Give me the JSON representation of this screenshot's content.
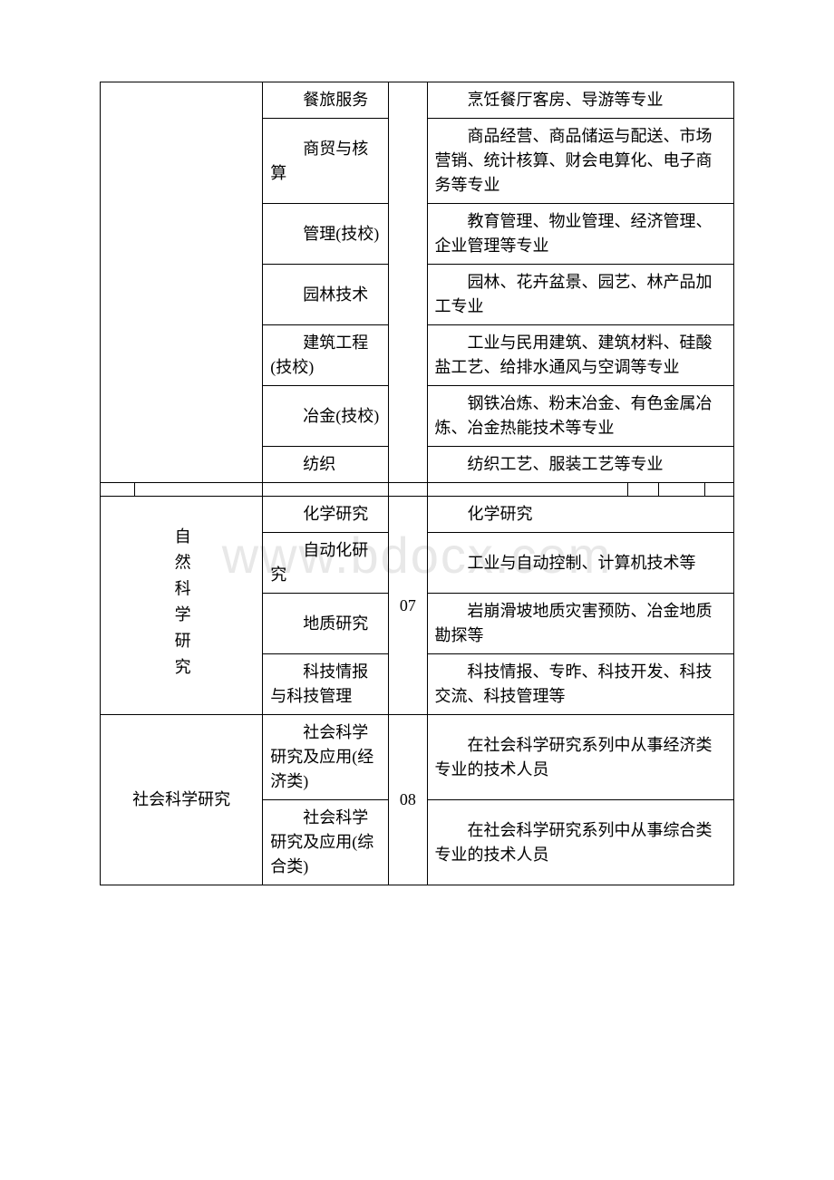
{
  "watermark": "www.bdocx.com",
  "section1": {
    "rows": [
      {
        "col2": "餐旅服务",
        "col4": "烹饪餐厅客房、导游等专业"
      },
      {
        "col2": "商贸与核算",
        "col4": "商品经营、商品储运与配送、市场营销、统计核算、财会电算化、电子商务等专业"
      },
      {
        "col2": "管理(技校)",
        "col4": "教育管理、物业管理、经济管理、企业管理等专业"
      },
      {
        "col2": "园林技术",
        "col4": "园林、花卉盆景、园艺、林产品加工专业"
      },
      {
        "col2": "建筑工程(技校)",
        "col4": "工业与民用建筑、建筑材料、硅酸盐工艺、给排水通风与空调等专业"
      },
      {
        "col2": "冶金(技校)",
        "col4": "钢铁冶炼、粉末冶金、有色金属冶炼、冶金热能技术等专业"
      },
      {
        "col2": "纺织",
        "col4": "纺织工艺、服装工艺等专业"
      }
    ]
  },
  "section2": {
    "header": "自然科学研究",
    "code": "07",
    "rows": [
      {
        "col2": "化学研究",
        "col4": "化学研究"
      },
      {
        "col2": "自动化研究",
        "col4": "工业与自动控制、计算机技术等"
      },
      {
        "col2": "地质研究",
        "col4": "岩崩滑坡地质灾害预防、冶金地质勘探等"
      },
      {
        "col2": "科技情报与科技管理",
        "col4": "科技情报、专昨、科技开发、科技交流、科技管理等"
      }
    ]
  },
  "section3": {
    "header": "社会科学研究",
    "code": "08",
    "rows": [
      {
        "col2": "社会科学研究及应用(经济类)",
        "col4": "在社会科学研究系列中从事经济类专业的技术人员"
      },
      {
        "col2": "社会科学研究及应用(综合类)",
        "col4": "在社会科学研究系列中从事综合类专业的技术人员"
      }
    ]
  }
}
